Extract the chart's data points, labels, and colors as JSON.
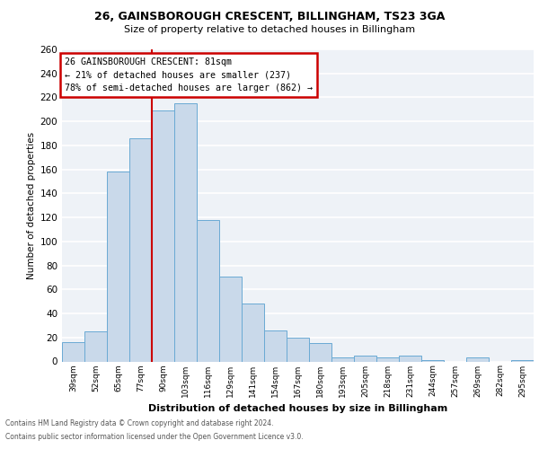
{
  "title1": "26, GAINSBOROUGH CRESCENT, BILLINGHAM, TS23 3GA",
  "title2": "Size of property relative to detached houses in Billingham",
  "xlabel": "Distribution of detached houses by size in Billingham",
  "ylabel": "Number of detached properties",
  "bin_labels": [
    "39sqm",
    "52sqm",
    "65sqm",
    "77sqm",
    "90sqm",
    "103sqm",
    "116sqm",
    "129sqm",
    "141sqm",
    "154sqm",
    "167sqm",
    "180sqm",
    "193sqm",
    "205sqm",
    "218sqm",
    "231sqm",
    "244sqm",
    "257sqm",
    "269sqm",
    "282sqm",
    "295sqm"
  ],
  "bar_heights": [
    16,
    25,
    158,
    186,
    209,
    215,
    118,
    71,
    48,
    26,
    20,
    15,
    3,
    5,
    3,
    5,
    1,
    0,
    3,
    0,
    1
  ],
  "bar_color": "#c9d9ea",
  "bar_edge_color": "#6aaad4",
  "background_color": "#eef2f7",
  "grid_color": "#ffffff",
  "red_line_x": 3.5,
  "annotation_title": "26 GAINSBOROUGH CRESCENT: 81sqm",
  "annotation_line1": "← 21% of detached houses are smaller (237)",
  "annotation_line2": "78% of semi-detached houses are larger (862) →",
  "annotation_box_color": "#ffffff",
  "annotation_box_edge_color": "#cc0000",
  "red_line_color": "#cc0000",
  "ylim": [
    0,
    260
  ],
  "yticks": [
    0,
    20,
    40,
    60,
    80,
    100,
    120,
    140,
    160,
    180,
    200,
    220,
    240,
    260
  ],
  "footnote1": "Contains HM Land Registry data © Crown copyright and database right 2024.",
  "footnote2": "Contains public sector information licensed under the Open Government Licence v3.0."
}
